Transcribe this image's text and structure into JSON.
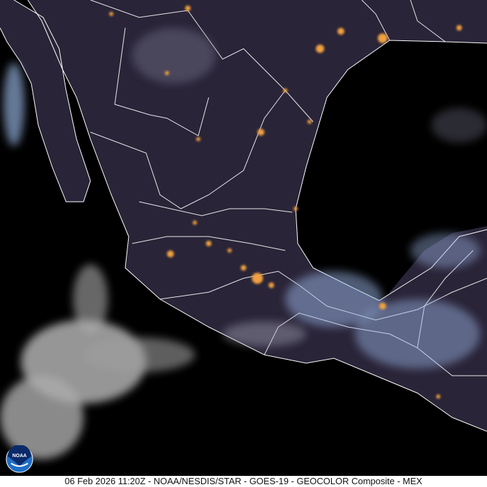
{
  "caption": "06 Feb 2026 11:20Z - NOAA/NESDIS/STAR - GOES-19 - GEOCOLOR Composite - MEX",
  "logo": {
    "text": "NOAA",
    "icon": "noaa-logo"
  },
  "colors": {
    "land": "#2a2438",
    "ocean": "#000000",
    "city_lights": "#f0a040",
    "borders": "#ffffff",
    "clouds": "#cfe0ff"
  }
}
